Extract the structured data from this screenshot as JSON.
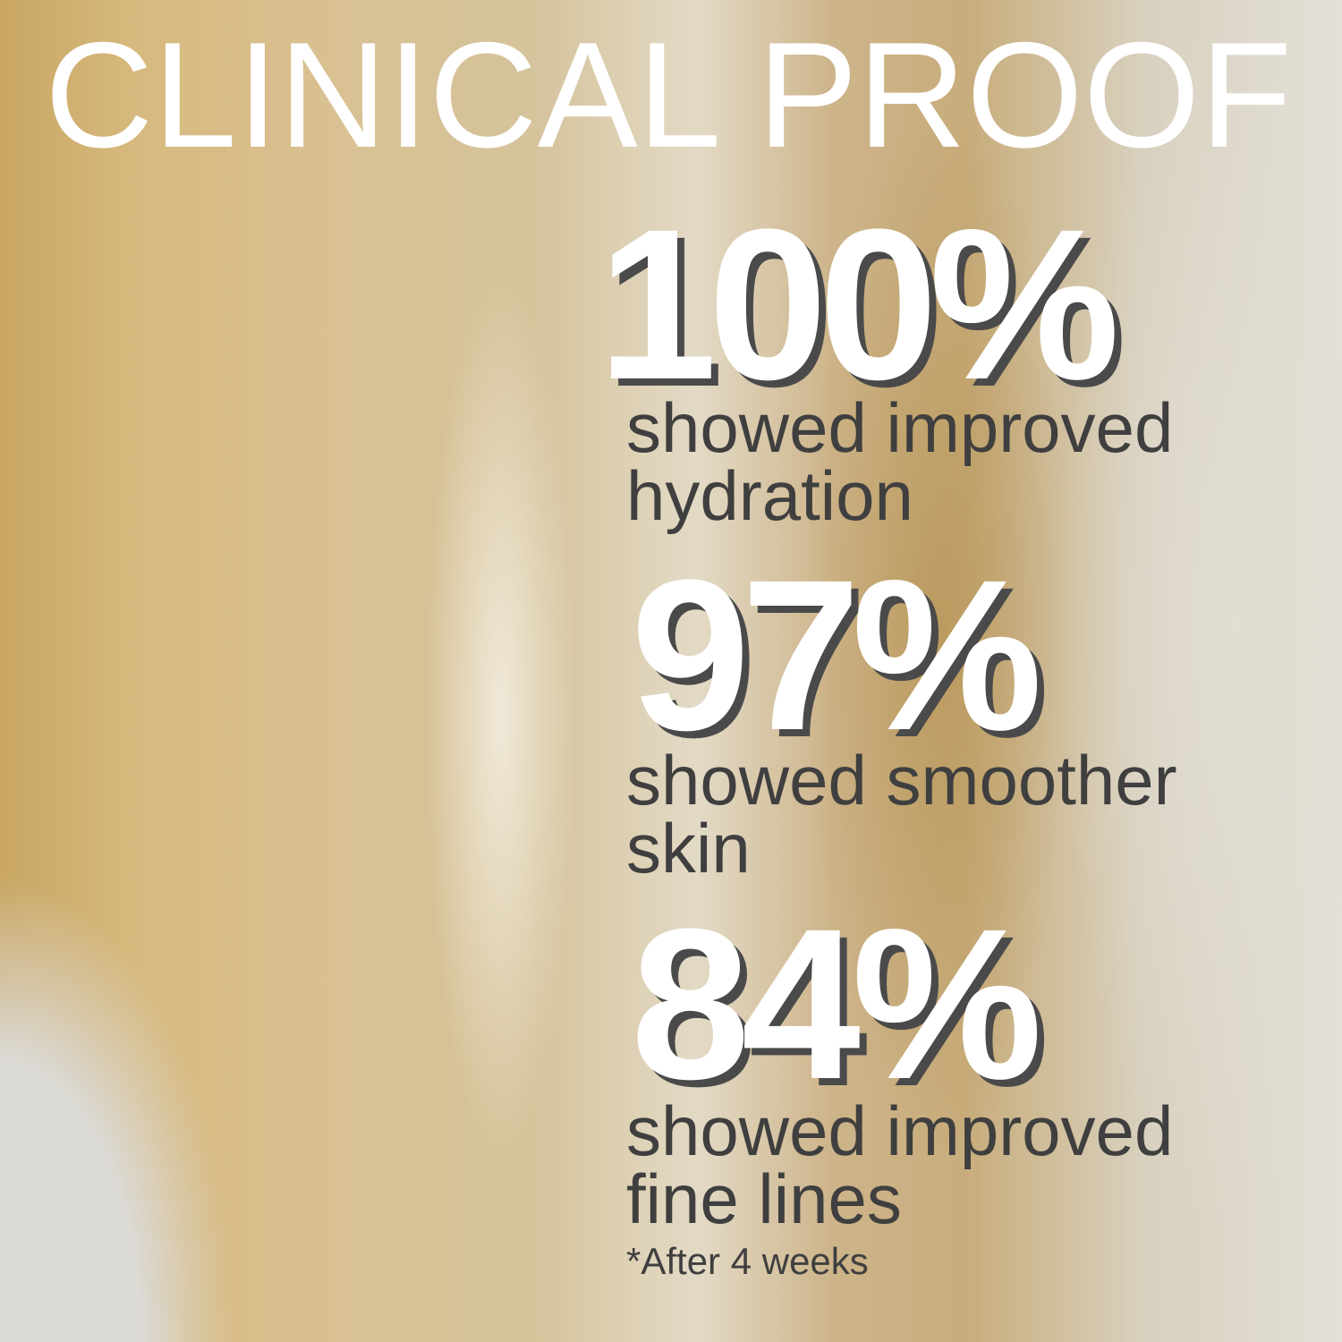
{
  "title": "CLINICAL PROOF",
  "stats": [
    {
      "value": "100%",
      "line1": "showed improved",
      "line2": "hydration"
    },
    {
      "value": "97%",
      "line1": "showed smoother",
      "line2": "skin"
    },
    {
      "value": "84%",
      "line1": "showed improved",
      "line2": "fine lines"
    }
  ],
  "footnote": "*After 4 weeks",
  "colors": {
    "text": "#3f3f3f",
    "highlight": "#ffffff",
    "shadow": "#4a4a4a",
    "background": "#d5c39c"
  }
}
